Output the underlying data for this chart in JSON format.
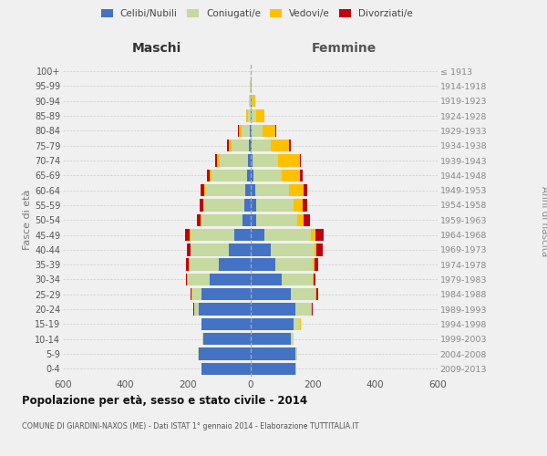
{
  "age_groups": [
    "0-4",
    "5-9",
    "10-14",
    "15-19",
    "20-24",
    "25-29",
    "30-34",
    "35-39",
    "40-44",
    "45-49",
    "50-54",
    "55-59",
    "60-64",
    "65-69",
    "70-74",
    "75-79",
    "80-84",
    "85-89",
    "90-94",
    "95-99",
    "100+"
  ],
  "birth_years": [
    "2009-2013",
    "2004-2008",
    "1999-2003",
    "1994-1998",
    "1989-1993",
    "1984-1988",
    "1979-1983",
    "1974-1978",
    "1969-1973",
    "1964-1968",
    "1959-1963",
    "1954-1958",
    "1949-1953",
    "1944-1948",
    "1939-1943",
    "1934-1938",
    "1929-1933",
    "1924-1928",
    "1919-1923",
    "1914-1918",
    "≤ 1913"
  ],
  "males_celibi": [
    155,
    165,
    150,
    155,
    165,
    155,
    130,
    100,
    70,
    50,
    25,
    18,
    15,
    10,
    8,
    5,
    2,
    0,
    0,
    0,
    0
  ],
  "males_coniugati": [
    2,
    2,
    2,
    2,
    15,
    30,
    70,
    95,
    120,
    140,
    130,
    130,
    130,
    115,
    90,
    55,
    25,
    8,
    3,
    1,
    0
  ],
  "males_vedovi": [
    0,
    0,
    0,
    0,
    1,
    2,
    2,
    2,
    2,
    3,
    3,
    3,
    3,
    5,
    8,
    10,
    10,
    5,
    2,
    0,
    0
  ],
  "males_divorziati": [
    0,
    0,
    0,
    0,
    2,
    3,
    5,
    10,
    12,
    15,
    12,
    10,
    10,
    8,
    5,
    3,
    2,
    1,
    0,
    0,
    0
  ],
  "females_nubili": [
    145,
    145,
    130,
    140,
    145,
    130,
    100,
    80,
    65,
    45,
    20,
    18,
    15,
    10,
    8,
    5,
    5,
    5,
    3,
    0,
    0
  ],
  "females_coniugate": [
    2,
    5,
    10,
    20,
    50,
    80,
    100,
    120,
    140,
    150,
    130,
    120,
    110,
    90,
    80,
    60,
    35,
    15,
    5,
    2,
    0
  ],
  "females_vedove": [
    0,
    0,
    0,
    1,
    2,
    3,
    3,
    5,
    8,
    15,
    20,
    30,
    45,
    60,
    70,
    60,
    40,
    25,
    8,
    2,
    0
  ],
  "females_divorziate": [
    0,
    0,
    0,
    1,
    3,
    5,
    5,
    12,
    20,
    25,
    20,
    15,
    12,
    8,
    5,
    5,
    2,
    1,
    0,
    0,
    0
  ],
  "colors": {
    "celibi": "#4472c4",
    "coniugati": "#c5d9a0",
    "vedovi": "#ffc000",
    "divorziati": "#c0000e"
  },
  "xlim": 600,
  "title": "Popolazione per età, sesso e stato civile - 2014",
  "subtitle": "COMUNE DI GIARDINI-NAXOS (ME) - Dati ISTAT 1° gennaio 2014 - Elaborazione TUTTITALIA.IT",
  "ylabel_left": "Fasce di età",
  "ylabel_right": "Anni di nascita",
  "xlabel_left": "Maschi",
  "xlabel_right": "Femmine",
  "bg_color": "#f0f0f0",
  "grid_color": "#cccccc"
}
